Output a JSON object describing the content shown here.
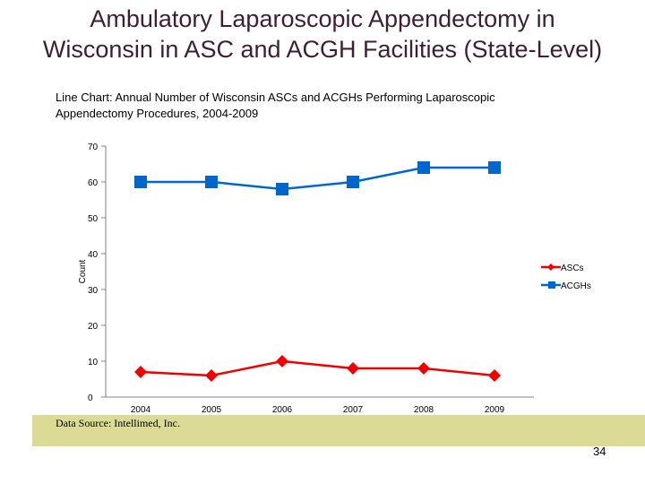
{
  "slide": {
    "title_line1": "Ambulatory Laparoscopic Appendectomy in",
    "title_line2": "Wisconsin in ASC and ACGH Facilities (State-Level)",
    "source": "Data Source: Intellimed, Inc.",
    "page_number": "34"
  },
  "colors": {
    "title": "#3d1f35",
    "footer_band": "#dbdb96",
    "ascs": "#ee0000",
    "acghs": "#0066cc"
  },
  "chart_data": {
    "type": "line",
    "title_line1": "Line Chart: Annual Number of Wisconsin ASCs and ACGHs Performing Laparoscopic",
    "title_line2": "Appendectomy Procedures, 2004-2009",
    "xlabel": "",
    "ylabel": "Count",
    "categories": [
      "2004",
      "2005",
      "2006",
      "2007",
      "2008",
      "2009"
    ],
    "ylim": [
      0,
      70
    ],
    "yticks": [
      "0",
      "10",
      "20",
      "30",
      "40",
      "50",
      "60",
      "70"
    ],
    "legend_position": "right",
    "series": [
      {
        "name": "ASCs",
        "marker": "diamond",
        "color": "#ee0000",
        "values": [
          7,
          6,
          10,
          8,
          8,
          6
        ]
      },
      {
        "name": "ACGHs",
        "marker": "square",
        "color": "#0066cc",
        "values": [
          60,
          60,
          58,
          60,
          64,
          64
        ]
      }
    ]
  }
}
